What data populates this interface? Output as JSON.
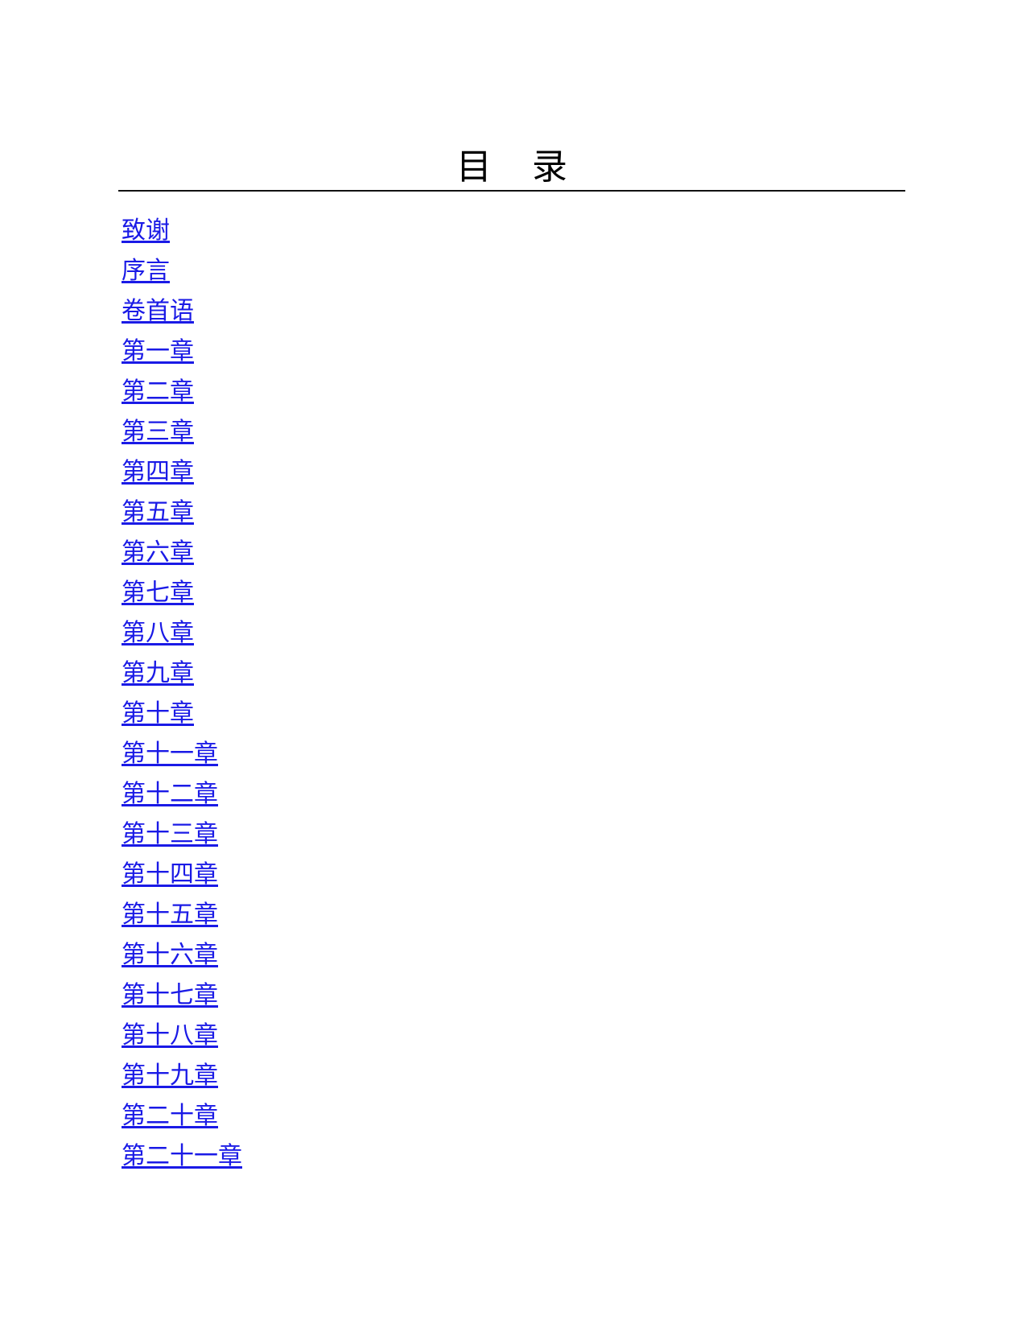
{
  "title": [
    "目",
    "录"
  ],
  "toc": [
    "致谢",
    "序言",
    "卷首语",
    "第一章",
    "第二章",
    "第三章",
    "第四章",
    "第五章",
    "第六章",
    "第七章",
    "第八章",
    "第九章",
    "第十章",
    "第十一章",
    "第十二章",
    "第十三章",
    "第十四章",
    "第十五章",
    "第十六章",
    "第十七章",
    "第十八章",
    "第十九章",
    "第二十章",
    "第二十一章"
  ],
  "colors": {
    "link": "#1a1ae6",
    "text": "#000000"
  }
}
